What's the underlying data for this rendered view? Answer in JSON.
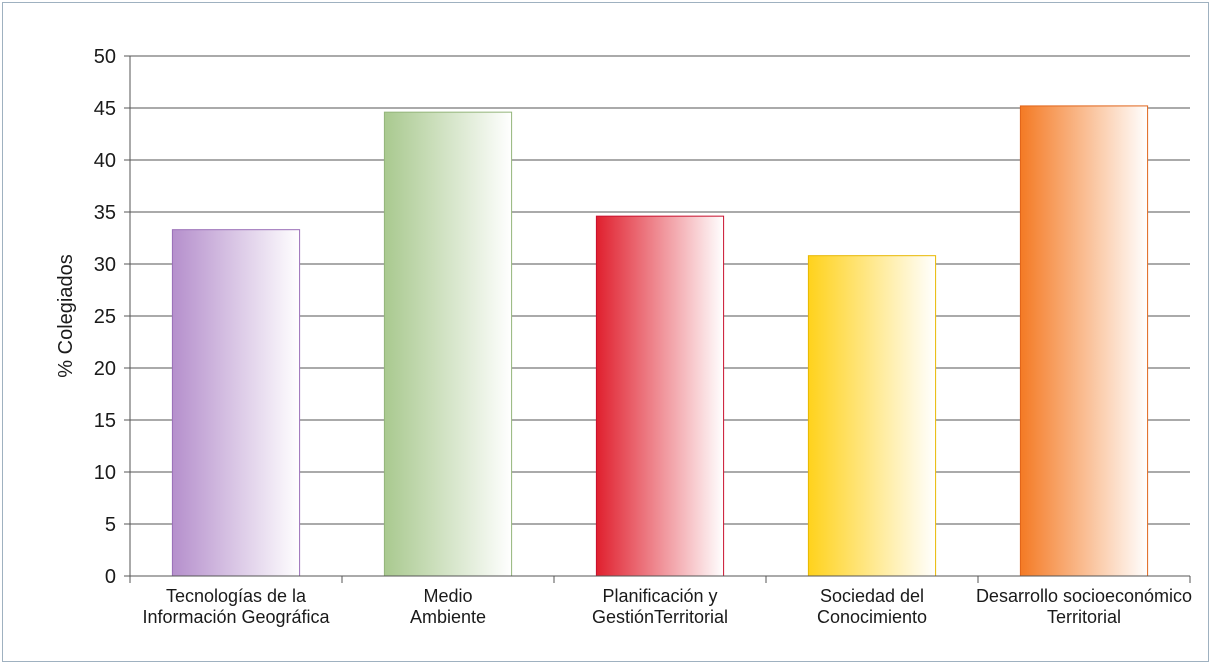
{
  "chart_data": {
    "type": "bar",
    "title": "",
    "xlabel": "",
    "ylabel": "% Colegiados",
    "ylim": [
      0,
      50
    ],
    "yticks": [
      0,
      5,
      10,
      15,
      20,
      25,
      30,
      35,
      40,
      45,
      50
    ],
    "grid": true,
    "categories": [
      [
        "Tecnologías de la",
        "Información Geográfica"
      ],
      [
        "Medio",
        "Ambiente"
      ],
      [
        "Planificación y",
        "GestiónTerritorial"
      ],
      [
        "Sociedad del",
        "Conocimiento"
      ],
      [
        "Desarrollo socioeconómico",
        "Territorial"
      ]
    ],
    "values": [
      33.3,
      44.6,
      34.6,
      30.8,
      45.2
    ],
    "colors": [
      "#b58fcc",
      "#a9c98f",
      "#e0202e",
      "#ffd21c",
      "#f47a24"
    ],
    "edge_colors": [
      "#9a6fb8",
      "#93b57a",
      "#c8102e",
      "#e8b800",
      "#e0641a"
    ]
  }
}
